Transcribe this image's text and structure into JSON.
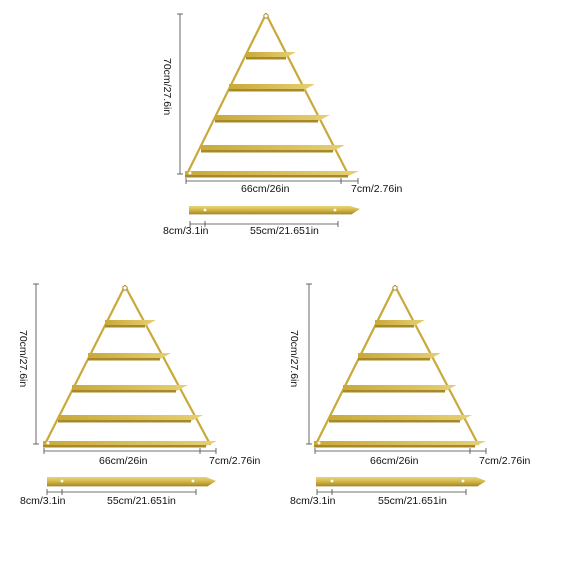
{
  "colors": {
    "gold": "#d4b646",
    "gold_dark": "#a8892a",
    "gold_light": "#ead47a",
    "dimension_line": "#444444",
    "text": "#111111"
  },
  "products": [
    {
      "label_height": "70cm/27.6in",
      "label_width": "66cm/26in",
      "label_depth": "7cm/2.76in",
      "label_rail_offset": "8cm/3.1in",
      "label_rail_length": "55cm/21.651in"
    },
    {
      "label_height": "70cm/27.6in",
      "label_width": "66cm/26in",
      "label_depth": "7cm/2.76in",
      "label_rail_offset": "8cm/3.1in",
      "label_rail_length": "55cm/21.651in"
    },
    {
      "label_height": "70cm/27.6in",
      "label_width": "66cm/26in",
      "label_depth": "7cm/2.76in",
      "label_rail_offset": "8cm/3.1in",
      "label_rail_length": "55cm/21.651in"
    }
  ]
}
